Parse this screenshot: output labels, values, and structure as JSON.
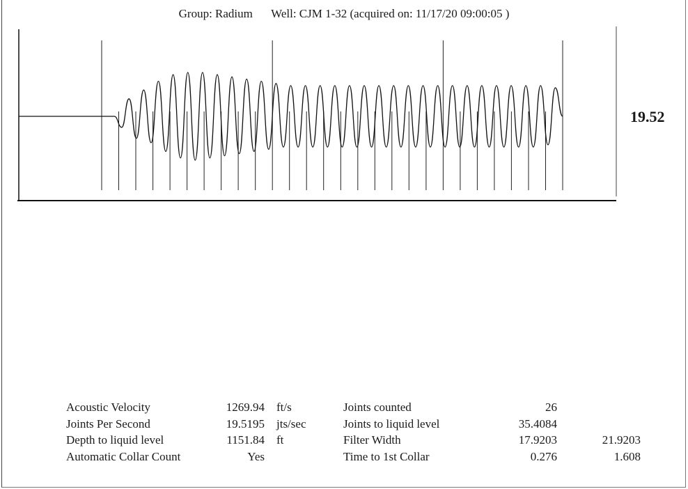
{
  "header": {
    "group": "Group: Radium",
    "well": "Well: CJM 1-32 (acquired on: 11/17/20 09:00:05 )"
  },
  "readout_value": "19.52",
  "chart_data": {
    "type": "line",
    "title": "",
    "xlabel": "",
    "ylabel": "",
    "series": [
      {
        "values": [
          0,
          0,
          0,
          0,
          0,
          0,
          0,
          0,
          0,
          0,
          0,
          0,
          0,
          0,
          -0.25,
          0.4,
          -0.5,
          0.6,
          -0.6,
          0.8,
          -0.8,
          0.95,
          -0.95,
          1.0,
          -1.0,
          1.0,
          -0.95,
          0.95,
          -0.9,
          0.9,
          -0.85,
          0.85,
          -0.8,
          0.8,
          -0.75,
          0.75,
          -0.7,
          0.7,
          -0.7,
          0.7,
          -0.7,
          0.7,
          -0.7,
          0.7,
          -0.7,
          0.7,
          -0.7,
          0.7,
          -0.7,
          0.7,
          -0.7,
          0.7,
          -0.7,
          0.7,
          -0.7,
          0.7,
          -0.7,
          0.7,
          -0.7,
          0.7,
          -0.7,
          0.7,
          -0.7,
          0.7,
          -0.7,
          0.7,
          -0.7,
          0.7,
          -0.7,
          0.7,
          -0.7,
          0.7,
          -0.65,
          0.65,
          0
        ]
      }
    ],
    "collar_markers": 28,
    "major_markers": 4
  },
  "stats": {
    "rows": [
      {
        "label": "Acoustic Velocity",
        "value": "1269.94",
        "unit": "ft/s",
        "label2": "Joints counted",
        "value2": "26",
        "value3": ""
      },
      {
        "label": "Joints Per Second",
        "value": "19.5195",
        "unit": "jts/sec",
        "label2": "Joints to liquid level",
        "value2": "35.4084",
        "value3": ""
      },
      {
        "label": "Depth to liquid level",
        "value": "1151.84",
        "unit": "ft",
        "label2": "Filter Width",
        "value2": "17.9203",
        "value3": "21.9203"
      },
      {
        "label": "Automatic Collar Count",
        "value": "Yes",
        "unit": "",
        "label2": "Time to 1st Collar",
        "value2": "0.276",
        "value3": "1.608"
      }
    ]
  }
}
